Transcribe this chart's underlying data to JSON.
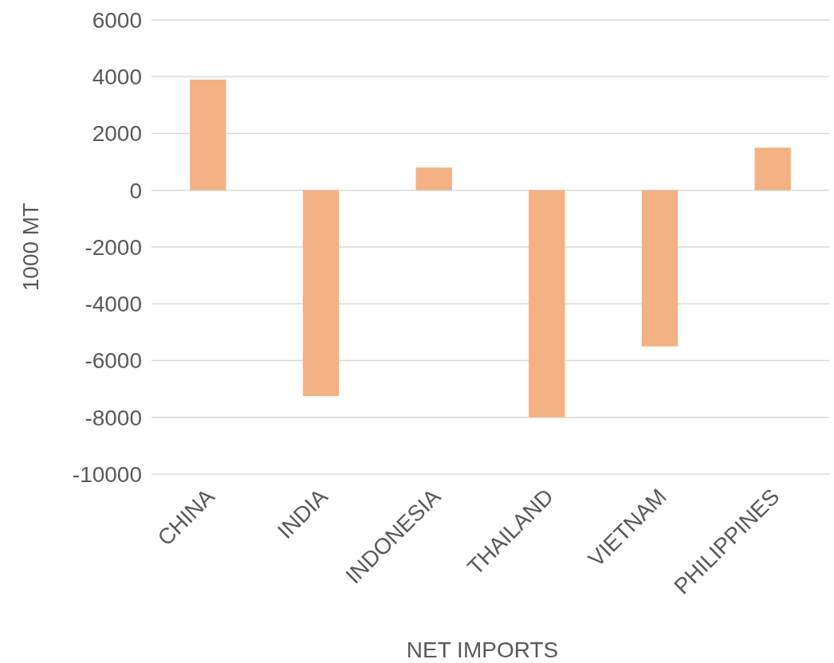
{
  "chart_data": {
    "type": "bar",
    "xlabel": "NET IMPORTS",
    "ylabel": "1000 MT",
    "categories": [
      "CHINA",
      "INDIA",
      "INDONESIA",
      "THAILAND",
      "VIETNAM",
      "PHILIPPINES"
    ],
    "values": [
      3900,
      -7250,
      800,
      -8000,
      -5500,
      1500
    ],
    "color": "#f4b183",
    "ylim": [
      -10000,
      6000
    ],
    "yticks": [
      -10000,
      -8000,
      -6000,
      -4000,
      -2000,
      0,
      2000,
      4000,
      6000
    ],
    "grid": "y"
  }
}
